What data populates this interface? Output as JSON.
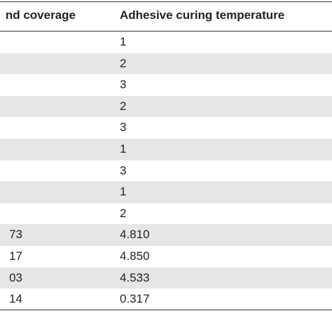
{
  "table": {
    "header": {
      "coverage": "nd coverage",
      "temperature": "Adhesive curing temperature"
    },
    "rows": [
      {
        "temperature": "1"
      },
      {
        "temperature": "2"
      },
      {
        "temperature": "3"
      },
      {
        "temperature": "2"
      },
      {
        "temperature": "3"
      },
      {
        "temperature": "1"
      },
      {
        "temperature": "3"
      },
      {
        "temperature": "1"
      },
      {
        "temperature": "2"
      },
      {
        "coverage": "73",
        "temperature": "4.810"
      },
      {
        "coverage": "17",
        "temperature": "4.850"
      },
      {
        "coverage": "03",
        "temperature": "4.533"
      },
      {
        "coverage": "14",
        "temperature": "0.317"
      }
    ]
  }
}
